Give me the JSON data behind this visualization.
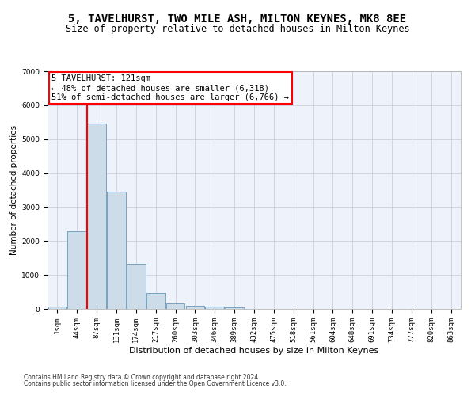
{
  "title": "5, TAVELHURST, TWO MILE ASH, MILTON KEYNES, MK8 8EE",
  "subtitle": "Size of property relative to detached houses in Milton Keynes",
  "xlabel": "Distribution of detached houses by size in Milton Keynes",
  "ylabel": "Number of detached properties",
  "footer_line1": "Contains HM Land Registry data © Crown copyright and database right 2024.",
  "footer_line2": "Contains public sector information licensed under the Open Government Licence v3.0.",
  "bar_labels": [
    "1sqm",
    "44sqm",
    "87sqm",
    "131sqm",
    "174sqm",
    "217sqm",
    "260sqm",
    "303sqm",
    "346sqm",
    "389sqm",
    "432sqm",
    "475sqm",
    "518sqm",
    "561sqm",
    "604sqm",
    "648sqm",
    "691sqm",
    "734sqm",
    "777sqm",
    "820sqm",
    "863sqm"
  ],
  "bar_values": [
    75,
    2280,
    5470,
    3450,
    1320,
    470,
    160,
    90,
    65,
    40,
    0,
    0,
    0,
    0,
    0,
    0,
    0,
    0,
    0,
    0,
    0
  ],
  "bar_color": "#ccdce8",
  "bar_edge_color": "#6699bb",
  "vline_color": "red",
  "vline_x_index": 2,
  "annotation_text": "5 TAVELHURST: 121sqm\n← 48% of detached houses are smaller (6,318)\n51% of semi-detached houses are larger (6,766) →",
  "ylim": [
    0,
    7000
  ],
  "yticks": [
    0,
    1000,
    2000,
    3000,
    4000,
    5000,
    6000,
    7000
  ],
  "bg_color": "#eef2fb",
  "grid_color": "#c8c8d8",
  "title_fontsize": 10,
  "subtitle_fontsize": 8.5,
  "xlabel_fontsize": 8,
  "ylabel_fontsize": 7.5,
  "tick_fontsize": 6.5,
  "annotation_fontsize": 7.5,
  "footer_fontsize": 5.5
}
